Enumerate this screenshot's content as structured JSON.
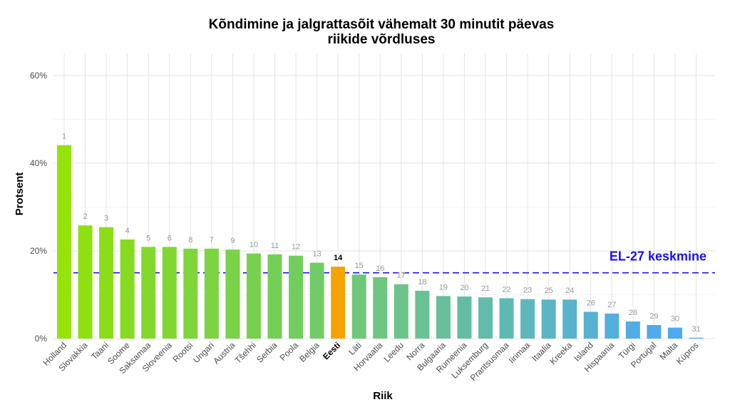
{
  "chart_data": {
    "type": "bar",
    "title_lines": [
      "Kõndimine ja jalgrattasõit vähemalt 30 minutit päevas",
      "riikide võrdluses"
    ],
    "xlabel": "Riik",
    "ylabel": "Protsent",
    "ylim": [
      0,
      65
    ],
    "yticks": [
      0,
      20,
      40,
      60
    ],
    "ytick_labels": [
      "0%",
      "20%",
      "40%",
      "60%"
    ],
    "grid": true,
    "categories": [
      "Holland",
      "Slovakkia",
      "Taani",
      "Soome",
      "Saksamaa",
      "Sloveenia",
      "Rootsi",
      "Ungari",
      "Austria",
      "Tšehhi",
      "Serbia",
      "Poola",
      "Belgia",
      "Eesti",
      "Läti",
      "Horvaatia",
      "Leedu",
      "Norra",
      "Bulgaaria",
      "Rumeenia",
      "Luksemburg",
      "Prantsusmaa",
      "Iirimaa",
      "Itaalia",
      "Kreeka",
      "Island",
      "Hispaania",
      "Türgi",
      "Portugal",
      "Malta",
      "Küpros"
    ],
    "values": [
      44.1,
      25.8,
      25.4,
      22.6,
      20.9,
      20.9,
      20.5,
      20.5,
      20.3,
      19.4,
      19.2,
      18.9,
      17.3,
      16.4,
      14.6,
      14.0,
      12.4,
      10.9,
      9.7,
      9.6,
      9.4,
      9.2,
      9.0,
      8.9,
      8.9,
      6.1,
      5.7,
      3.9,
      3.1,
      2.5,
      0.2
    ],
    "ranks": [
      "1",
      "2",
      "3",
      "4",
      "5",
      "6",
      "8",
      "7",
      "9",
      "10",
      "11",
      "12",
      "13",
      "14",
      "15",
      "16",
      "17",
      "18",
      "19",
      "20",
      "21",
      "22",
      "23",
      "25",
      "24",
      "26",
      "27",
      "28",
      "29",
      "30",
      "31"
    ],
    "colors": [
      "#95e308",
      "#8fe010",
      "#8bde17",
      "#86db21",
      "#83d92b",
      "#81d732",
      "#7fd63a",
      "#7cd441",
      "#7ad248",
      "#77d14f",
      "#74cf57",
      "#72cd5f",
      "#71cc67",
      "#f5a300",
      "#6fc77a",
      "#6dc682",
      "#6bc48a",
      "#69c293",
      "#67bf9b",
      "#64bda3",
      "#62bbab",
      "#5fb9b3",
      "#5db7bb",
      "#5bb5c3",
      "#59b3cb",
      "#56b1d3",
      "#53afdb",
      "#51ade3",
      "#4fabeb",
      "#4da9f2",
      "#4ba7fa"
    ],
    "highlight": "Eesti",
    "highlight_color": "#f5a300",
    "reference_line": {
      "label": "EL-27 keskmine",
      "value": 15,
      "color": "#1a12f0",
      "style": "dashed"
    }
  }
}
